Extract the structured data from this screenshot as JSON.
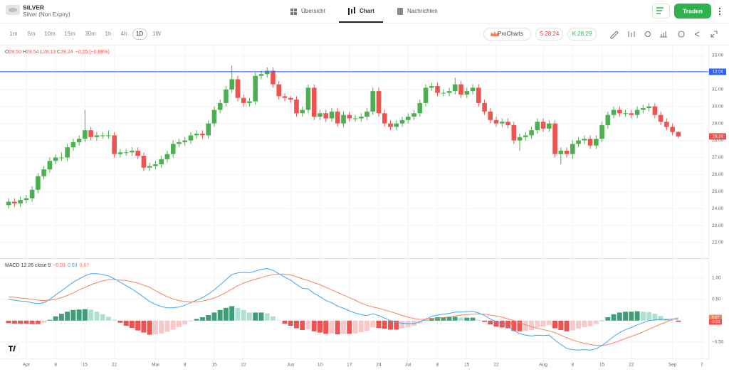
{
  "header": {
    "symbol": "SILVER",
    "name": "Silver (Non Expiry)",
    "tabs": [
      "Übersicht",
      "Chart",
      "Nachrichten"
    ],
    "button": "Traden"
  },
  "toolbar": {
    "timeframes": [
      "1m",
      "5m",
      "10m",
      "15m",
      "30m",
      "1h",
      "4h",
      "1D",
      "1W"
    ],
    "procharts": "ProCharts",
    "sell": "S 28.24",
    "buy": "K 28.29"
  },
  "chart_data": [
    {
      "type": "candlestick",
      "legend": [
        {
          "key": "O",
          "value": "28.50"
        },
        {
          "key": "H",
          "value": "28.54"
        },
        {
          "key": "L",
          "value": "28.13"
        },
        {
          "key": "C",
          "value": "28.24"
        }
      ],
      "change": "−0.25 (−0.88%)",
      "up_color": "#4caf50",
      "down_color": "#ef5350",
      "categories": [
        null,
        null,
        null,
        "Apr",
        null,
        null,
        null,
        null,
        "8",
        null,
        null,
        null,
        null,
        "15",
        null,
        null,
        null,
        null,
        "22",
        null,
        null,
        null,
        null,
        null,
        null,
        "Mai",
        null,
        null,
        null,
        null,
        "8",
        null,
        null,
        null,
        null,
        "15",
        null,
        null,
        null,
        null,
        "22",
        null,
        null,
        null,
        null,
        null,
        null,
        null,
        "Jun",
        null,
        null,
        null,
        null,
        "10",
        null,
        null,
        null,
        null,
        "17",
        null,
        null,
        null,
        null,
        "24",
        null,
        null,
        null,
        null,
        "Jul",
        null,
        null,
        null,
        null,
        "8",
        null,
        null,
        null,
        null,
        "15",
        null,
        null,
        null,
        null,
        "22",
        null,
        null,
        null,
        null,
        null,
        null,
        null,
        "Aug",
        null,
        null,
        null,
        null,
        "8",
        null,
        null,
        null,
        null,
        "15",
        null,
        null,
        null,
        null,
        "22",
        null,
        null,
        null,
        null,
        null,
        null,
        "Sep",
        null,
        null,
        null,
        null,
        "7"
      ],
      "open": [
        24.2,
        24.4,
        24.3,
        24.5,
        24.6,
        25.1,
        25.9,
        26.3,
        26.8,
        27.0,
        27.0,
        27.6,
        27.9,
        28.1,
        28.6,
        28.2,
        28.3,
        28.3,
        28.3,
        27.2,
        27.3,
        27.3,
        27.4,
        27.1,
        26.4,
        26.5,
        26.6,
        26.9,
        27.2,
        27.8,
        27.9,
        28.0,
        28.3,
        28.4,
        28.3,
        29.0,
        29.8,
        30.2,
        31.0,
        31.6,
        30.5,
        30.2,
        30.3,
        31.8,
        31.9,
        32.1,
        31.3,
        30.6,
        30.5,
        30.4,
        29.6,
        29.8,
        31.1,
        29.4,
        29.6,
        29.3,
        29.7,
        29.0,
        29.5,
        29.3,
        29.3,
        29.4,
        29.7,
        30.9,
        29.6,
        29.0,
        28.8,
        29.0,
        29.2,
        29.4,
        29.6,
        30.2,
        31.1,
        31.2,
        30.8,
        30.8,
        30.9,
        31.3,
        30.7,
        30.9,
        31.1,
        30.2,
        29.7,
        29.2,
        29.0,
        29.1,
        28.9,
        28.0,
        28.2,
        28.3,
        28.6,
        29.1,
        28.7,
        29.0,
        27.2,
        27.4,
        27.2,
        27.8,
        28.0,
        28.1,
        27.7,
        28.1,
        28.9,
        29.5,
        29.8,
        29.6,
        29.6,
        29.5,
        29.8,
        29.9,
        30.0,
        29.5,
        29.1,
        28.8,
        28.5,
        null,
        null,
        null,
        null
      ],
      "high": [
        24.6,
        24.6,
        24.7,
        24.8,
        25.3,
        26.1,
        26.5,
        27.0,
        27.2,
        27.3,
        27.8,
        28.1,
        28.3,
        29.8,
        28.8,
        28.5,
        28.5,
        28.6,
        28.5,
        27.5,
        27.5,
        27.6,
        27.6,
        27.3,
        26.7,
        26.8,
        27.1,
        27.4,
        28.0,
        28.1,
        28.2,
        28.5,
        28.6,
        28.6,
        29.2,
        30.0,
        30.4,
        31.2,
        32.4,
        31.8,
        30.7,
        30.5,
        32.0,
        32.1,
        32.3,
        32.3,
        31.5,
        30.8,
        30.6,
        30.6,
        30.0,
        31.3,
        31.3,
        29.8,
        29.8,
        29.9,
        29.9,
        29.7,
        29.7,
        29.5,
        29.6,
        29.9,
        31.1,
        31.1,
        29.8,
        29.2,
        29.2,
        29.4,
        29.6,
        29.8,
        30.4,
        31.3,
        31.4,
        31.4,
        31.0,
        31.1,
        31.7,
        31.5,
        31.1,
        31.3,
        31.3,
        30.4,
        29.9,
        29.4,
        29.3,
        29.3,
        29.1,
        28.4,
        28.5,
        28.8,
        29.3,
        29.3,
        29.2,
        29.2,
        27.6,
        27.6,
        28.0,
        28.2,
        28.3,
        28.3,
        28.3,
        29.1,
        29.7,
        30.0,
        30.0,
        29.8,
        29.8,
        30.0,
        30.1,
        30.2,
        30.2,
        29.7,
        29.3,
        29.0,
        28.54,
        null,
        null,
        null,
        null
      ],
      "low": [
        24.0,
        24.1,
        24.1,
        24.3,
        24.4,
        24.9,
        25.7,
        26.1,
        26.6,
        26.8,
        26.8,
        27.4,
        27.7,
        27.9,
        28.0,
        28.0,
        28.1,
        28.1,
        27.0,
        27.0,
        27.1,
        27.1,
        26.9,
        26.2,
        26.2,
        26.3,
        26.4,
        26.7,
        27.0,
        27.6,
        27.7,
        27.8,
        28.1,
        28.1,
        28.1,
        28.8,
        29.6,
        30.0,
        30.8,
        30.3,
        30.0,
        30.0,
        30.1,
        31.6,
        31.7,
        31.1,
        30.4,
        30.3,
        30.2,
        29.4,
        29.4,
        29.6,
        29.2,
        29.2,
        29.1,
        29.1,
        28.8,
        28.8,
        29.1,
        29.1,
        29.1,
        29.2,
        29.5,
        29.4,
        28.8,
        28.6,
        28.6,
        28.8,
        29.0,
        29.2,
        29.4,
        30.0,
        30.9,
        30.6,
        30.6,
        30.6,
        30.7,
        30.5,
        30.5,
        30.7,
        30.0,
        29.5,
        29.0,
        28.8,
        28.8,
        28.7,
        27.8,
        27.4,
        28.0,
        28.1,
        28.4,
        28.5,
        28.5,
        27.0,
        26.6,
        27.0,
        26.9,
        27.6,
        27.8,
        27.5,
        27.5,
        27.9,
        28.7,
        29.3,
        29.4,
        29.4,
        29.3,
        29.3,
        29.6,
        29.7,
        29.3,
        28.9,
        28.6,
        28.3,
        28.13,
        null,
        null,
        null,
        null
      ],
      "close": [
        24.4,
        24.3,
        24.5,
        24.6,
        25.1,
        25.9,
        26.3,
        26.8,
        27.0,
        27.0,
        27.6,
        27.9,
        28.1,
        28.6,
        28.2,
        28.3,
        28.3,
        28.3,
        27.2,
        27.3,
        27.3,
        27.4,
        27.1,
        26.4,
        26.5,
        26.6,
        26.9,
        27.2,
        27.8,
        27.9,
        28.0,
        28.3,
        28.4,
        28.3,
        29.0,
        29.8,
        30.2,
        31.0,
        31.6,
        30.5,
        30.2,
        30.3,
        31.8,
        31.9,
        32.1,
        31.3,
        30.6,
        30.5,
        30.4,
        29.6,
        29.8,
        31.1,
        29.4,
        29.6,
        29.3,
        29.7,
        29.0,
        29.5,
        29.3,
        29.3,
        29.4,
        29.7,
        30.9,
        29.6,
        29.0,
        28.8,
        29.0,
        29.2,
        29.4,
        29.6,
        30.2,
        31.1,
        31.2,
        30.8,
        30.8,
        30.9,
        31.3,
        30.7,
        30.9,
        31.1,
        30.2,
        29.7,
        29.2,
        29.0,
        29.1,
        28.9,
        28.0,
        28.2,
        28.3,
        28.6,
        29.1,
        28.7,
        29.0,
        27.2,
        27.4,
        27.2,
        27.8,
        28.0,
        28.1,
        27.7,
        28.1,
        28.9,
        29.5,
        29.8,
        29.6,
        29.6,
        29.5,
        29.8,
        29.9,
        30.0,
        29.5,
        29.1,
        28.8,
        28.5,
        28.24,
        null,
        null,
        null,
        null
      ],
      "last_tag": "28.24",
      "price_line": {
        "value": 32.04,
        "label": "12:04",
        "color": "#2962ff"
      },
      "ylim": [
        21.12,
        33.5
      ],
      "yticks": [
        {
          "value": 33,
          "label": "33.00"
        },
        {
          "value": 32,
          "label": "32.00"
        },
        {
          "value": 31,
          "label": "31.00"
        },
        {
          "value": 30,
          "label": "30.00"
        },
        {
          "value": 29,
          "label": "29.00"
        },
        {
          "value": 28,
          "label": "28.00"
        },
        {
          "value": 27,
          "label": "27.00"
        },
        {
          "value": 26,
          "label": "26.00"
        },
        {
          "value": 25,
          "label": "25.00"
        },
        {
          "value": 24,
          "label": "24.00"
        },
        {
          "value": 23,
          "label": "23.00"
        },
        {
          "value": 22,
          "label": "22.00"
        }
      ],
      "grid": true
    },
    {
      "type": "macd",
      "title": "MACD 12 26 close 9",
      "legend_values": [
        {
          "text": "−0.03",
          "color": "#ef5350"
        },
        {
          "text": "0.03",
          "color": "#42a5f5"
        },
        {
          "text": "0.07",
          "color": "#f4845f"
        }
      ],
      "series": [
        {
          "color": "#42a5f5",
          "tag": "0.03",
          "values": [
            0.5,
            0.48,
            0.46,
            0.45,
            0.42,
            0.4,
            0.42,
            0.5,
            0.6,
            0.7,
            0.8,
            0.9,
            0.98,
            1.05,
            1.1,
            1.1,
            1.08,
            1.05,
            0.98,
            0.9,
            0.82,
            0.74,
            0.65,
            0.55,
            0.45,
            0.38,
            0.33,
            0.3,
            0.3,
            0.32,
            0.36,
            0.42,
            0.48,
            0.54,
            0.62,
            0.72,
            0.84,
            0.96,
            1.08,
            1.12,
            1.13,
            1.12,
            1.16,
            1.2,
            1.22,
            1.18,
            1.1,
            1.02,
            0.95,
            0.85,
            0.76,
            0.74,
            0.64,
            0.56,
            0.47,
            0.42,
            0.34,
            0.29,
            0.23,
            0.18,
            0.14,
            0.12,
            0.16,
            0.12,
            0.06,
            0.0,
            -0.04,
            -0.06,
            -0.07,
            -0.07,
            -0.03,
            0.04,
            0.1,
            0.13,
            0.15,
            0.17,
            0.2,
            0.2,
            0.21,
            0.22,
            0.18,
            0.12,
            0.04,
            -0.03,
            -0.08,
            -0.14,
            -0.24,
            -0.3,
            -0.34,
            -0.36,
            -0.34,
            -0.35,
            -0.34,
            -0.46,
            -0.56,
            -0.65,
            -0.68,
            -0.69,
            -0.68,
            -0.69,
            -0.66,
            -0.58,
            -0.48,
            -0.37,
            -0.28,
            -0.21,
            -0.16,
            -0.1,
            -0.05,
            0.0,
            0.02,
            0.03,
            0.02,
            0.04,
            0.03,
            null,
            null,
            null,
            null
          ]
        },
        {
          "color": "#f4845f",
          "tag": "0.07",
          "values": [
            0.56,
            0.55,
            0.53,
            0.52,
            0.5,
            0.48,
            0.47,
            0.48,
            0.5,
            0.54,
            0.59,
            0.65,
            0.72,
            0.78,
            0.84,
            0.89,
            0.93,
            0.96,
            0.96,
            0.95,
            0.94,
            0.91,
            0.88,
            0.83,
            0.78,
            0.7,
            0.63,
            0.56,
            0.51,
            0.47,
            0.45,
            0.44,
            0.44,
            0.46,
            0.49,
            0.53,
            0.59,
            0.66,
            0.74,
            0.82,
            0.88,
            0.93,
            0.97,
            1.01,
            1.05,
            1.08,
            1.09,
            1.09,
            1.07,
            1.03,
            0.98,
            0.94,
            0.89,
            0.84,
            0.78,
            0.72,
            0.66,
            0.6,
            0.54,
            0.48,
            0.41,
            0.36,
            0.32,
            0.29,
            0.25,
            0.21,
            0.17,
            0.12,
            0.08,
            0.05,
            0.03,
            0.03,
            0.04,
            0.05,
            0.07,
            0.09,
            0.11,
            0.13,
            0.14,
            0.15,
            0.16,
            0.15,
            0.13,
            0.11,
            0.08,
            0.04,
            0.0,
            -0.05,
            -0.1,
            -0.14,
            -0.18,
            -0.21,
            -0.24,
            -0.28,
            -0.34,
            -0.4,
            -0.45,
            -0.5,
            -0.53,
            -0.56,
            -0.58,
            -0.58,
            -0.56,
            -0.52,
            -0.47,
            -0.42,
            -0.37,
            -0.32,
            -0.26,
            -0.2,
            -0.14,
            -0.08,
            -0.03,
            0.03,
            0.07,
            null,
            null,
            null,
            null
          ]
        }
      ],
      "histogram": {
        "tag": "-0.03",
        "colors": [
          "#3f9e78",
          "#b2dfd4",
          "#ef5350",
          "#f8c7c9"
        ],
        "values": [
          -0.06,
          -0.07,
          -0.07,
          -0.07,
          -0.08,
          -0.08,
          -0.05,
          0.02,
          0.1,
          0.16,
          0.21,
          0.25,
          0.26,
          0.27,
          0.26,
          0.21,
          0.15,
          0.09,
          0.02,
          -0.05,
          -0.12,
          -0.17,
          -0.23,
          -0.28,
          -0.33,
          -0.32,
          -0.3,
          -0.26,
          -0.21,
          -0.15,
          -0.09,
          -0.02,
          0.04,
          0.08,
          0.13,
          0.19,
          0.25,
          0.3,
          0.34,
          0.3,
          0.25,
          0.19,
          0.19,
          0.19,
          0.17,
          0.1,
          0.01,
          -0.07,
          -0.12,
          -0.18,
          -0.22,
          -0.2,
          -0.25,
          -0.28,
          -0.31,
          -0.3,
          -0.32,
          -0.31,
          -0.31,
          -0.3,
          -0.27,
          -0.24,
          -0.16,
          -0.17,
          -0.19,
          -0.21,
          -0.21,
          -0.18,
          -0.15,
          -0.12,
          -0.06,
          0.01,
          0.06,
          0.08,
          0.08,
          0.08,
          0.09,
          0.07,
          0.07,
          0.07,
          0.02,
          -0.03,
          -0.09,
          -0.14,
          -0.16,
          -0.18,
          -0.24,
          -0.25,
          -0.24,
          -0.22,
          -0.16,
          -0.14,
          -0.1,
          -0.18,
          -0.22,
          -0.25,
          -0.23,
          -0.19,
          -0.15,
          -0.13,
          -0.08,
          0.0,
          0.08,
          0.15,
          0.19,
          0.21,
          0.21,
          0.22,
          0.21,
          0.2,
          0.16,
          0.11,
          0.05,
          0.01,
          -0.03,
          null,
          null,
          null,
          null
        ]
      },
      "ylim": [
        -0.87,
        1.43
      ],
      "yticks": [
        {
          "value": 1,
          "label": "1.00"
        },
        {
          "value": 0.5,
          "label": "0.50"
        },
        {
          "value": -0.5,
          "label": "−0.50"
        }
      ]
    }
  ]
}
